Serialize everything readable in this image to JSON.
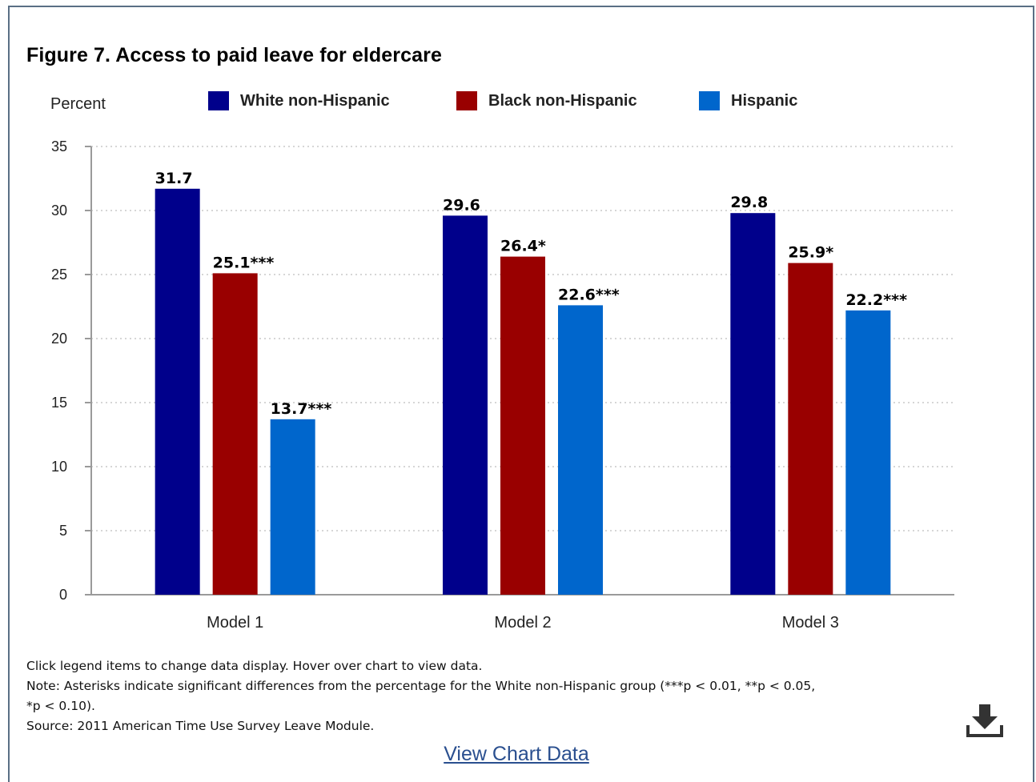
{
  "figure": {
    "title": "Figure 7. Access to paid leave for eldercare",
    "y_unit_label": "Percent"
  },
  "legend": [
    {
      "label": "White non-Hispanic",
      "color": "#00008b"
    },
    {
      "label": "Black non-Hispanic",
      "color": "#990000"
    },
    {
      "label": "Hispanic",
      "color": "#0066cc"
    }
  ],
  "chart_data": {
    "type": "bar",
    "title": "Figure 7. Access to paid leave for eldercare",
    "ylabel": "Percent",
    "xlabel": "",
    "categories": [
      "Model 1",
      "Model 2",
      "Model 3"
    ],
    "ylim": [
      0,
      35
    ],
    "yticks": [
      0,
      5,
      10,
      15,
      20,
      25,
      30,
      35
    ],
    "grid": true,
    "legend_position": "top",
    "series": [
      {
        "name": "White non-Hispanic",
        "color": "#00008b",
        "values": [
          31.7,
          29.6,
          29.8
        ],
        "labels": [
          "31.7",
          "29.6",
          "29.8"
        ]
      },
      {
        "name": "Black non-Hispanic",
        "color": "#990000",
        "values": [
          25.1,
          26.4,
          25.9
        ],
        "labels": [
          "25.1***",
          "26.4*",
          "25.9*"
        ]
      },
      {
        "name": "Hispanic",
        "color": "#0066cc",
        "values": [
          13.7,
          22.6,
          22.2
        ],
        "labels": [
          "13.7***",
          "22.6***",
          "22.2***"
        ]
      }
    ]
  },
  "notes": {
    "interaction": "Click legend items to change data display. Hover over chart to view data.",
    "note_line1": "Note: Asterisks indicate significant differences from the percentage for the White non-Hispanic group (***p < 0.01, **p < 0.05,",
    "note_line2": "*p < 0.10).",
    "source": "Source: 2011 American Time Use Survey Leave Module."
  },
  "icons": {
    "download": "download-icon"
  },
  "links": {
    "view_chart_data": "View Chart Data"
  }
}
